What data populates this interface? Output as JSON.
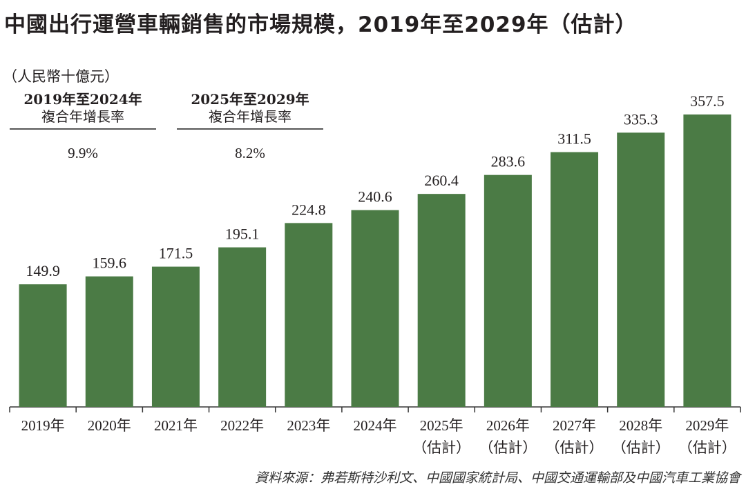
{
  "chart_data": {
    "type": "bar",
    "title": "中國出行運營車輛銷售的市場規模，2019年至2029年（估計）",
    "ylabel": "（人民幣十億元）",
    "xlabel": "",
    "categories": [
      "2019年",
      "2020年",
      "2021年",
      "2022年",
      "2023年",
      "2024年",
      "2025年",
      "2026年",
      "2027年",
      "2028年",
      "2029年"
    ],
    "category_notes": [
      "",
      "",
      "",
      "",
      "",
      "",
      "（估計）",
      "（估計）",
      "（估計）",
      "（估計）",
      "（估計）"
    ],
    "values": [
      149.9,
      159.6,
      171.5,
      195.1,
      224.8,
      240.6,
      260.4,
      283.6,
      311.5,
      335.3,
      357.5
    ],
    "value_labels": [
      "149.9",
      "159.6",
      "171.5",
      "195.1",
      "224.8",
      "240.6",
      "260.4",
      "283.6",
      "311.5",
      "335.3",
      "357.5"
    ],
    "ylim": [
      0,
      357.5
    ],
    "grid": false,
    "bar_color": "#4b7b45",
    "cagr": [
      {
        "period": "2019年至2024年",
        "label": "複合年增長率",
        "value": "9.9%"
      },
      {
        "period": "2025年至2029年",
        "label": "複合年增長率",
        "value": "8.2%"
      }
    ],
    "source": "資料來源：弗若斯特沙利文、中國國家統計局、中國交通運輸部及中國汽車工業協會"
  }
}
